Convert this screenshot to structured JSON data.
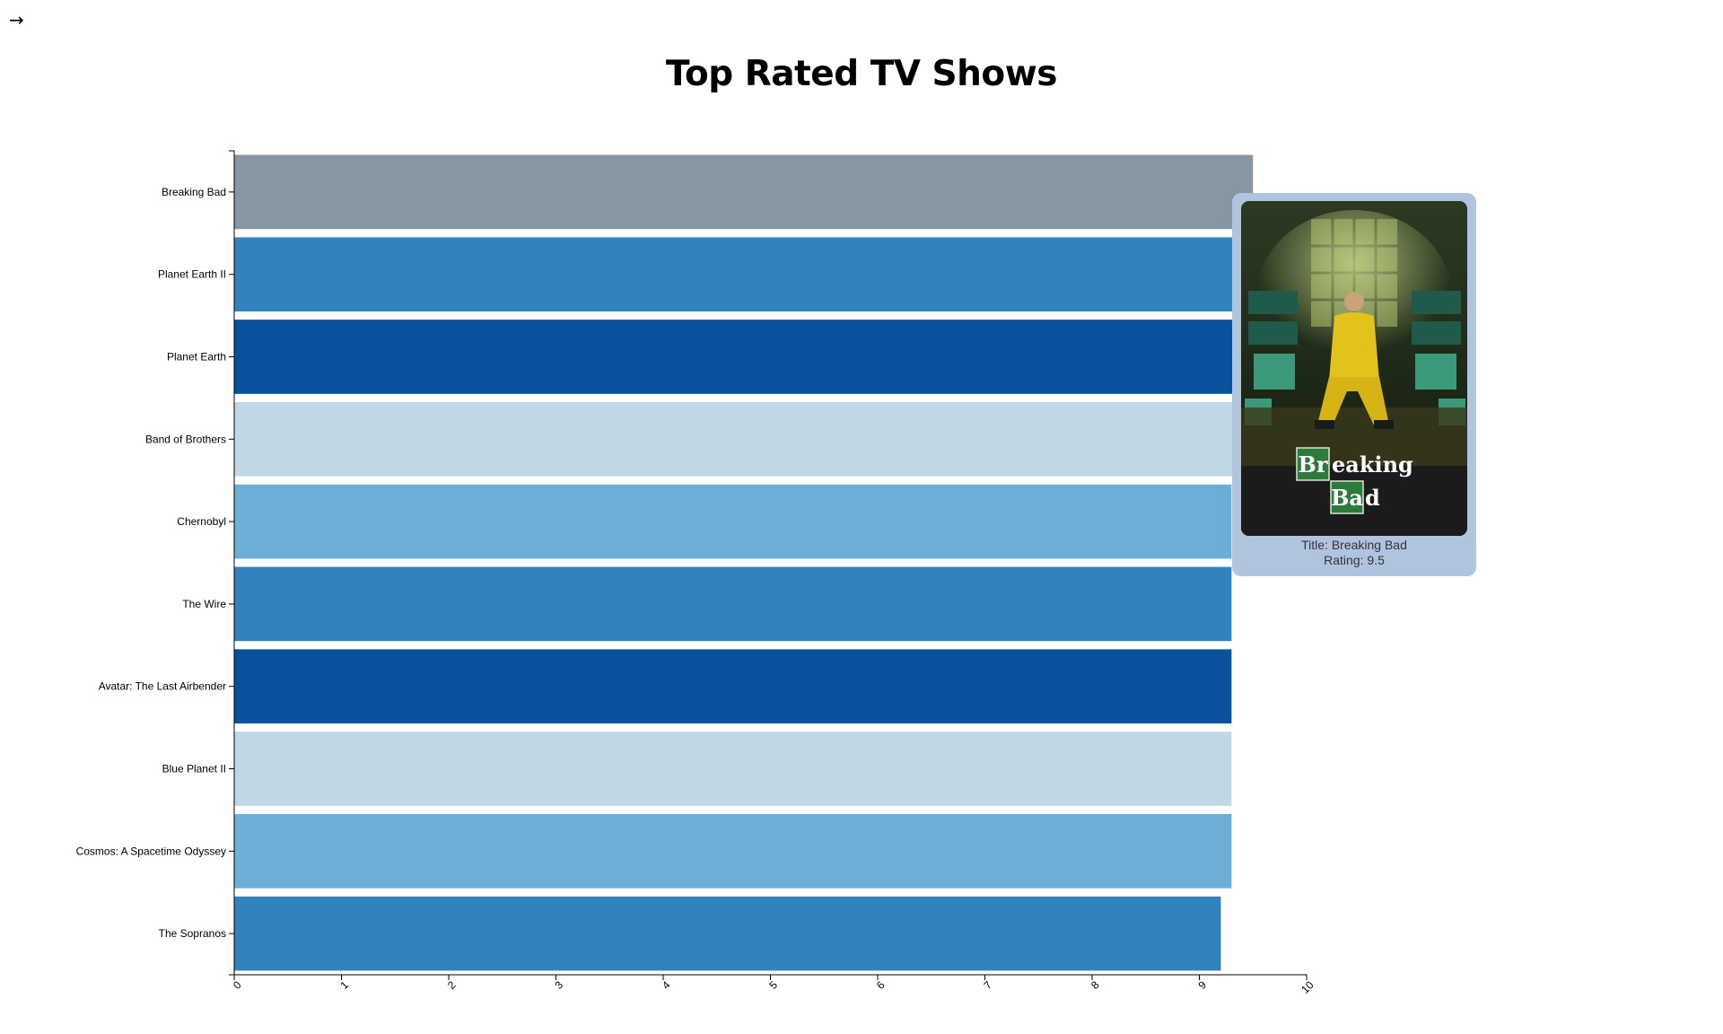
{
  "nav": {
    "back_arrow": "→"
  },
  "chart_data": {
    "type": "bar",
    "orientation": "horizontal",
    "title": "Top Rated TV Shows",
    "categories": [
      "Breaking Bad",
      "Planet Earth II",
      "Planet Earth",
      "Band of Brothers",
      "Chernobyl",
      "The Wire",
      "Avatar: The Last Airbender",
      "Blue Planet II",
      "Cosmos: A Spacetime Odyssey",
      "The Sopranos"
    ],
    "values": [
      9.5,
      9.5,
      9.4,
      9.4,
      9.3,
      9.3,
      9.3,
      9.3,
      9.3,
      9.2
    ],
    "xlim": [
      0,
      10
    ],
    "xticks": [
      "0",
      "1",
      "2",
      "3",
      "4",
      "5",
      "6",
      "7",
      "8",
      "9",
      "10"
    ],
    "highlighted": "Breaking Bad",
    "colors": {
      "highlight": "#8696a3",
      "palette": [
        "#6baed6",
        "#3182bd",
        "#08519c",
        "#c0d7e6"
      ]
    }
  },
  "tooltip": {
    "title_line": "Title: Breaking Bad",
    "rating_line": "Rating: 9.5",
    "poster_icon": "breaking-bad-poster",
    "logo_text": [
      "Br",
      "eaking",
      "Ba",
      "d"
    ]
  }
}
